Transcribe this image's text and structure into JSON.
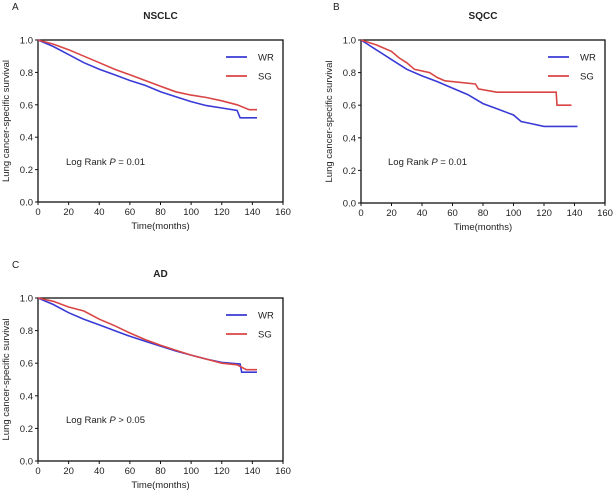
{
  "chart_data": [
    {
      "type": "line",
      "panel": "A",
      "title": "NSCLC",
      "xlabel": "Time(months)",
      "ylabel": "Lung cancer-specific survival",
      "xlim": [
        0,
        160
      ],
      "ylim": [
        0,
        1.0
      ],
      "xticks": [
        0,
        20,
        40,
        60,
        80,
        100,
        120,
        140,
        160
      ],
      "yticks": [
        "0.0",
        "0.2",
        "0.4",
        "0.6",
        "0.8",
        "1.0"
      ],
      "annotation": {
        "prefix": "Log Rank ",
        "p": "P",
        "suffix": " = 0.01"
      },
      "legend_position": "top-right",
      "series": [
        {
          "name": "WR",
          "color": "#3a3ad6",
          "x": [
            0,
            10,
            20,
            30,
            40,
            50,
            60,
            70,
            80,
            90,
            100,
            110,
            120,
            130,
            132,
            143
          ],
          "y": [
            1,
            0.96,
            0.91,
            0.86,
            0.82,
            0.785,
            0.75,
            0.72,
            0.68,
            0.65,
            0.62,
            0.595,
            0.58,
            0.565,
            0.52,
            0.52
          ]
        },
        {
          "name": "SG",
          "color": "#d94545",
          "x": [
            0,
            10,
            20,
            30,
            40,
            50,
            60,
            70,
            80,
            90,
            100,
            110,
            120,
            130,
            138,
            143
          ],
          "y": [
            1,
            0.975,
            0.94,
            0.9,
            0.86,
            0.82,
            0.785,
            0.75,
            0.715,
            0.68,
            0.66,
            0.645,
            0.625,
            0.6,
            0.57,
            0.57
          ]
        }
      ]
    },
    {
      "type": "line",
      "panel": "B",
      "title": "SQCC",
      "xlabel": "Time(months)",
      "ylabel": "Lung cancer-specific survival",
      "xlim": [
        0,
        160
      ],
      "ylim": [
        0,
        1.0
      ],
      "xticks": [
        0,
        20,
        40,
        60,
        80,
        100,
        120,
        140,
        160
      ],
      "yticks": [
        "0.0",
        "0.2",
        "0.4",
        "0.6",
        "0.8",
        "1.0"
      ],
      "annotation": {
        "prefix": "Log Rank ",
        "p": "P",
        "suffix": " = 0.01"
      },
      "legend_position": "top-right",
      "series": [
        {
          "name": "WR",
          "color": "#3a3ad6",
          "x": [
            0,
            10,
            20,
            30,
            40,
            50,
            60,
            70,
            80,
            90,
            100,
            105,
            110,
            120,
            142
          ],
          "y": [
            1,
            0.94,
            0.88,
            0.82,
            0.78,
            0.745,
            0.705,
            0.665,
            0.61,
            0.575,
            0.54,
            0.5,
            0.49,
            0.47,
            0.47
          ]
        },
        {
          "name": "SG",
          "color": "#d94545",
          "x": [
            0,
            10,
            20,
            25,
            30,
            35,
            45,
            50,
            55,
            75,
            77,
            89,
            128,
            128.5,
            138
          ],
          "y": [
            1,
            0.97,
            0.93,
            0.89,
            0.86,
            0.82,
            0.8,
            0.77,
            0.75,
            0.73,
            0.7,
            0.68,
            0.68,
            0.6,
            0.6
          ]
        }
      ]
    },
    {
      "type": "line",
      "panel": "C",
      "title": "AD",
      "xlabel": "Time(months)",
      "ylabel": "Lung cancer-specific survival",
      "xlim": [
        0,
        160
      ],
      "ylim": [
        0,
        1.0
      ],
      "xticks": [
        0,
        20,
        40,
        60,
        80,
        100,
        120,
        140,
        160
      ],
      "yticks": [
        "0.0",
        "0.2",
        "0.4",
        "0.6",
        "0.8",
        "1.0"
      ],
      "annotation": {
        "prefix": "Log Rank ",
        "p": "P",
        "suffix": " > 0.05"
      },
      "legend_position": "top-right",
      "series": [
        {
          "name": "WR",
          "color": "#3a3ad6",
          "x": [
            0,
            10,
            20,
            30,
            40,
            50,
            60,
            70,
            80,
            90,
            100,
            110,
            120,
            132,
            133,
            143
          ],
          "y": [
            1,
            0.96,
            0.91,
            0.87,
            0.835,
            0.8,
            0.765,
            0.735,
            0.705,
            0.675,
            0.65,
            0.625,
            0.605,
            0.595,
            0.545,
            0.545
          ]
        },
        {
          "name": "SG",
          "color": "#d94545",
          "x": [
            0,
            10,
            20,
            30,
            40,
            50,
            60,
            70,
            80,
            90,
            100,
            110,
            120,
            130,
            136,
            143
          ],
          "y": [
            1,
            0.98,
            0.945,
            0.92,
            0.87,
            0.83,
            0.785,
            0.745,
            0.71,
            0.68,
            0.65,
            0.625,
            0.6,
            0.59,
            0.56,
            0.56
          ]
        }
      ]
    }
  ]
}
